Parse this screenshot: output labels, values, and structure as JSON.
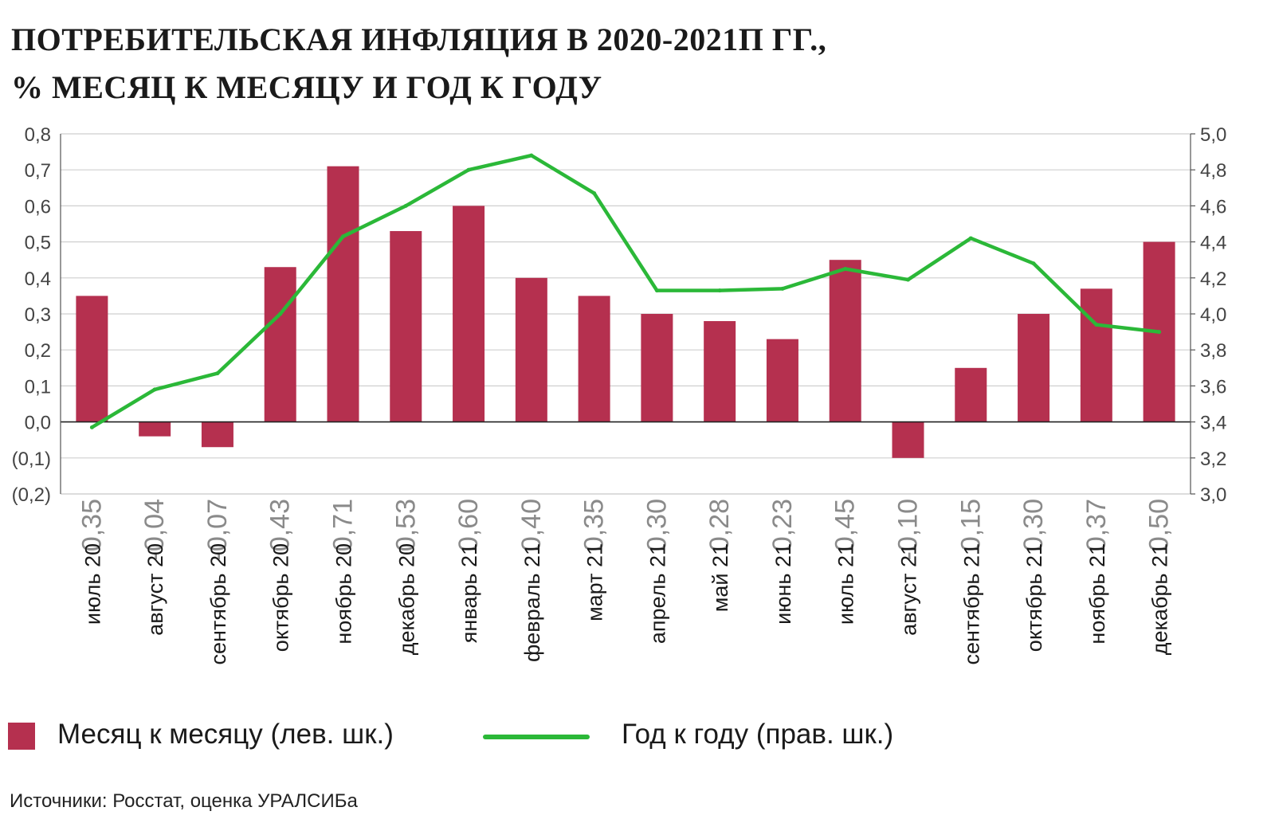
{
  "header": {
    "title_line1": "ПОТРЕБИТЕЛЬСКАЯ ИНФЛЯЦИЯ В 2020-2021П ГГ.,",
    "title_line2": "% МЕСЯЦ К МЕСЯЦУ И ГОД К ГОДУ"
  },
  "legend": {
    "bar_label": "Месяц к месяцу (лев. шк.)",
    "line_label": "Год к году (прав. шк.)"
  },
  "source": "Источники: Росстат, оценка УРАЛСИБа",
  "colors": {
    "bar": "#b5304f",
    "line": "#2bb838",
    "grid": "#cfcfcf",
    "axis": "#555555",
    "text": "#444444"
  },
  "chart_data": {
    "type": "bar+line",
    "title": "ПОТРЕБИТЕЛЬСКАЯ ИНФЛЯЦИЯ В 2020-2021П ГГ., % МЕСЯЦ К МЕСЯЦУ И ГОД К ГОДУ",
    "categories": [
      "июль 20",
      "август 20",
      "сентябрь 20",
      "октябрь 20",
      "ноябрь 20",
      "декабрь 20",
      "январь 21",
      "февраль 21",
      "март 21",
      "апрель 21",
      "май 21",
      "июнь 21",
      "июль 21",
      "август 21",
      "сентябрь 21",
      "октябрь 21",
      "ноябрь 21",
      "декабрь 21"
    ],
    "series": [
      {
        "name": "Месяц к месяцу (лев. шк.)",
        "type": "bar",
        "axis": "left",
        "values": [
          0.35,
          -0.04,
          -0.07,
          0.43,
          0.71,
          0.53,
          0.6,
          0.4,
          0.35,
          0.3,
          0.28,
          0.23,
          0.45,
          -0.1,
          0.15,
          0.3,
          0.37,
          0.5
        ],
        "labels": [
          "0,35",
          "-0,04",
          "-0,07",
          "0,43",
          "0,71",
          "0,53",
          "0,60",
          "0,40",
          "0,35",
          "0,30",
          "0,28",
          "0,23",
          "0,45",
          "-0,10",
          "0,15",
          "0,30",
          "0,37",
          "0,50"
        ]
      },
      {
        "name": "Год к году (прав. шк.)",
        "type": "line",
        "axis": "right",
        "values": [
          3.37,
          3.58,
          3.67,
          4.0,
          4.43,
          4.6,
          4.8,
          4.88,
          4.67,
          4.13,
          4.13,
          4.14,
          4.25,
          4.19,
          4.42,
          4.28,
          3.94,
          3.9
        ]
      }
    ],
    "left_axis": {
      "ylim": [
        -0.2,
        0.8
      ],
      "ticks": [
        "0,8",
        "0,7",
        "0,6",
        "0,5",
        "0,4",
        "0,3",
        "0,2",
        "0,1",
        "0,0",
        "(0,1)",
        "(0,2)"
      ]
    },
    "right_axis": {
      "ylim": [
        3.0,
        5.0
      ],
      "ticks": [
        "5,0",
        "4,8",
        "4,6",
        "4,4",
        "4,2",
        "4,0",
        "3,8",
        "3,6",
        "3,4",
        "3,2",
        "3,0"
      ]
    },
    "grid": true,
    "legend_position": "bottom"
  }
}
